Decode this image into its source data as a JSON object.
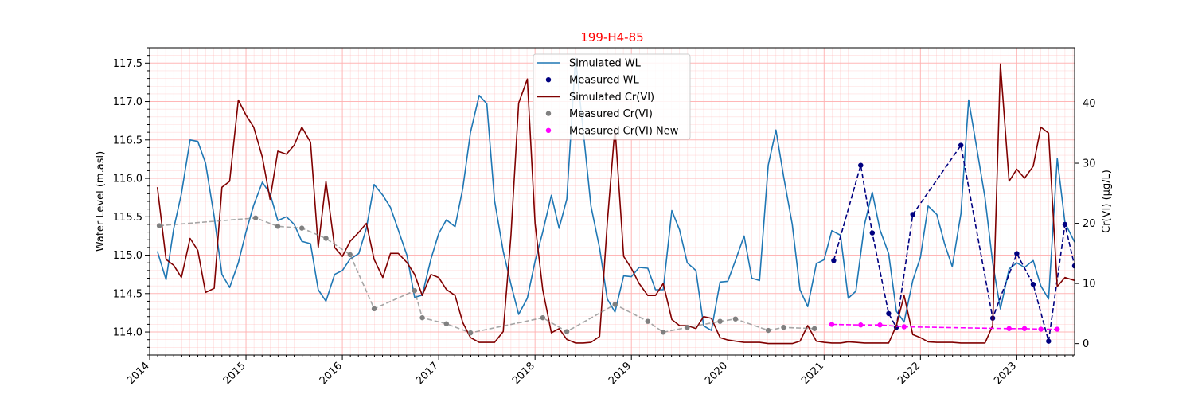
{
  "chart_data": {
    "type": "line",
    "title": "199-H4-85",
    "title_color": "#ff0000",
    "xlabel": "",
    "ylabel_left": "Water Level (m.asl)",
    "ylabel_right": "Cr(VI) (µg/L)",
    "xlim": [
      2014.0,
      2023.6
    ],
    "ylim_left": [
      113.7,
      117.7
    ],
    "ylim_right": [
      -1.9,
      49.2
    ],
    "x_ticks": [
      "2014",
      "2015",
      "2016",
      "2017",
      "2018",
      "2019",
      "2020",
      "2021",
      "2022",
      "2023"
    ],
    "y_ticks_left": [
      "114.0",
      "114.5",
      "115.0",
      "115.5",
      "116.0",
      "116.5",
      "117.0",
      "117.5"
    ],
    "y_ticks_right": [
      "0",
      "10",
      "20",
      "30",
      "40"
    ],
    "grid": true,
    "legend_location": "top-center",
    "legend": [
      "Simulated WL",
      "Measured WL",
      "Simulated Cr(VI)",
      "Measured Cr(VI)",
      "Measured Cr(VI) New"
    ],
    "colors": {
      "simulated_wl": "#1f77b4",
      "measured_wl": "#000080",
      "simulated_cr": "#800000",
      "measured_cr": "#808080",
      "measured_cr_new": "#ff00ff",
      "grid": "#ffb0b0"
    },
    "series": [
      {
        "name": "Simulated WL",
        "axis": "left",
        "style": "line",
        "x": [
          2014.08,
          2014.17,
          2014.25,
          2014.33,
          2014.42,
          2014.5,
          2014.58,
          2014.67,
          2014.75,
          2014.83,
          2014.92,
          2015.0,
          2015.08,
          2015.17,
          2015.25,
          2015.33,
          2015.42,
          2015.5,
          2015.58,
          2015.67,
          2015.75,
          2015.83,
          2015.92,
          2016.0,
          2016.08,
          2016.17,
          2016.25,
          2016.33,
          2016.42,
          2016.5,
          2016.58,
          2016.67,
          2016.75,
          2016.83,
          2016.92,
          2017.0,
          2017.08,
          2017.17,
          2017.25,
          2017.33,
          2017.42,
          2017.5,
          2017.58,
          2017.67,
          2017.75,
          2017.83,
          2017.92,
          2018.0,
          2018.08,
          2018.17,
          2018.25,
          2018.33,
          2018.42,
          2018.5,
          2018.58,
          2018.67,
          2018.75,
          2018.83,
          2018.92,
          2019.0,
          2019.08,
          2019.17,
          2019.25,
          2019.33,
          2019.42,
          2019.5,
          2019.58,
          2019.67,
          2019.75,
          2019.83,
          2019.92,
          2020.0,
          2020.08,
          2020.17,
          2020.25,
          2020.33,
          2020.42,
          2020.5,
          2020.58,
          2020.67,
          2020.75,
          2020.83,
          2020.92,
          2021.0,
          2021.08,
          2021.17,
          2021.25,
          2021.33,
          2021.42,
          2021.5,
          2021.58,
          2021.67,
          2021.75,
          2021.83,
          2021.92,
          2022.0,
          2022.08,
          2022.17,
          2022.25,
          2022.33,
          2022.42,
          2022.5,
          2022.58,
          2022.67,
          2022.75,
          2022.83,
          2022.92,
          2023.0,
          2023.08,
          2023.17,
          2023.25,
          2023.33,
          2023.42,
          2023.5,
          2023.6
        ],
        "values": [
          115.05,
          114.68,
          115.35,
          115.8,
          116.5,
          116.48,
          116.2,
          115.5,
          114.75,
          114.58,
          114.9,
          115.3,
          115.65,
          115.95,
          115.8,
          115.45,
          115.5,
          115.4,
          115.18,
          115.15,
          114.55,
          114.4,
          114.75,
          114.8,
          114.95,
          115.02,
          115.35,
          115.92,
          115.78,
          115.62,
          115.33,
          115.0,
          114.45,
          114.48,
          114.95,
          115.28,
          115.46,
          115.37,
          115.87,
          116.6,
          117.08,
          116.97,
          115.71,
          115.05,
          114.62,
          114.23,
          114.44,
          114.92,
          115.3,
          115.78,
          115.35,
          115.73,
          117.57,
          116.62,
          115.64,
          115.09,
          114.43,
          114.26,
          114.73,
          114.72,
          114.84,
          114.83,
          114.55,
          114.55,
          115.58,
          115.33,
          114.9,
          114.8,
          114.08,
          114.02,
          114.65,
          114.66,
          114.93,
          115.25,
          114.7,
          114.67,
          116.17,
          116.63,
          116.02,
          115.4,
          114.55,
          114.33,
          114.89,
          114.94,
          115.32,
          115.26,
          114.44,
          114.53,
          115.4,
          115.82,
          115.33,
          115.02,
          114.27,
          114.13,
          114.67,
          114.97,
          115.64,
          115.53,
          115.15,
          114.85,
          115.54,
          117.02,
          116.43,
          115.75,
          114.9,
          114.3,
          114.82,
          114.9,
          114.84,
          114.93,
          114.6,
          114.43,
          116.26,
          115.42,
          115.17
        ]
      },
      {
        "name": "Measured WL",
        "axis": "left",
        "style": "dashed-markers",
        "x": [
          2021.1,
          2021.38,
          2021.5,
          2021.67,
          2021.75,
          2021.92,
          2022.42,
          2022.75,
          2023.0,
          2023.17,
          2023.33,
          2023.5,
          2023.6
        ],
        "values": [
          114.93,
          116.17,
          115.29,
          114.24,
          114.06,
          115.53,
          116.43,
          114.18,
          115.02,
          114.62,
          113.88,
          115.4,
          114.86
        ]
      },
      {
        "name": "Simulated Cr(VI)",
        "axis": "right",
        "style": "line",
        "x": [
          2014.08,
          2014.17,
          2014.25,
          2014.33,
          2014.42,
          2014.5,
          2014.58,
          2014.67,
          2014.75,
          2014.83,
          2014.92,
          2015.0,
          2015.08,
          2015.17,
          2015.25,
          2015.33,
          2015.42,
          2015.5,
          2015.58,
          2015.67,
          2015.75,
          2015.83,
          2015.92,
          2016.0,
          2016.08,
          2016.17,
          2016.25,
          2016.33,
          2016.42,
          2016.5,
          2016.58,
          2016.67,
          2016.75,
          2016.83,
          2016.92,
          2017.0,
          2017.08,
          2017.17,
          2017.25,
          2017.33,
          2017.42,
          2017.5,
          2017.58,
          2017.67,
          2017.75,
          2017.83,
          2017.92,
          2018.0,
          2018.08,
          2018.17,
          2018.25,
          2018.33,
          2018.42,
          2018.5,
          2018.58,
          2018.67,
          2018.75,
          2018.83,
          2018.92,
          2019.0,
          2019.08,
          2019.17,
          2019.25,
          2019.33,
          2019.42,
          2019.5,
          2019.58,
          2019.67,
          2019.75,
          2019.83,
          2019.92,
          2020.0,
          2020.08,
          2020.17,
          2020.25,
          2020.33,
          2020.42,
          2020.5,
          2020.58,
          2020.67,
          2020.75,
          2020.83,
          2020.92,
          2021.0,
          2021.08,
          2021.17,
          2021.25,
          2021.33,
          2021.42,
          2021.5,
          2021.58,
          2021.67,
          2021.75,
          2021.83,
          2021.92,
          2022.0,
          2022.08,
          2022.17,
          2022.25,
          2022.33,
          2022.42,
          2022.5,
          2022.58,
          2022.67,
          2022.75,
          2022.83,
          2022.92,
          2023.0,
          2023.08,
          2023.17,
          2023.25,
          2023.33,
          2023.42,
          2023.5,
          2023.6
        ],
        "values": [
          26,
          14,
          13,
          11,
          17.5,
          15.5,
          8.5,
          9.2,
          26,
          27,
          40.5,
          38,
          36,
          31,
          24,
          32,
          31.5,
          33,
          36,
          33.5,
          16,
          27,
          16,
          14.5,
          17,
          18.5,
          20,
          14,
          11,
          15,
          15,
          13.5,
          11.5,
          8,
          11.5,
          11,
          9,
          8,
          3.5,
          1,
          0.2,
          0.2,
          0.2,
          2,
          18,
          40,
          44,
          20,
          9,
          1.8,
          2.5,
          0.7,
          0.1,
          0.1,
          0.2,
          1.2,
          20,
          36,
          14.5,
          12.5,
          10,
          8,
          8,
          10,
          4,
          3,
          3,
          2.5,
          4.5,
          4.2,
          1,
          0.6,
          0.4,
          0.2,
          0.2,
          0.2,
          0,
          0,
          0,
          0,
          0.4,
          3,
          0.4,
          0.2,
          0.1,
          0.1,
          0.3,
          0.2,
          0.1,
          0.1,
          0.1,
          0.1,
          3,
          8,
          1.5,
          1,
          0.3,
          0.2,
          0.2,
          0.2,
          0.1,
          0.1,
          0.1,
          0.1,
          3,
          46.5,
          27,
          29,
          27.5,
          29.5,
          36,
          35,
          9.5,
          11,
          10.5
        ]
      },
      {
        "name": "Measured Cr(VI)",
        "axis": "right",
        "style": "dashed-markers",
        "x": [
          2014.1,
          2015.1,
          2015.33,
          2015.58,
          2015.83,
          2016.08,
          2016.33,
          2016.75,
          2016.83,
          2017.08,
          2017.33,
          2018.08,
          2018.33,
          2018.83,
          2019.17,
          2019.33,
          2019.58,
          2019.92,
          2020.08,
          2020.42,
          2020.58,
          2020.9
        ],
        "values": [
          19.6,
          20.9,
          19.5,
          19.2,
          17.5,
          14.8,
          5.8,
          8.8,
          4.3,
          3.3,
          1.8,
          4.3,
          2.0,
          6.5,
          3.7,
          1.9,
          2.7,
          3.7,
          4.1,
          2.2,
          2.7,
          2.5
        ]
      },
      {
        "name": "Measured Cr(VI) New",
        "axis": "right",
        "style": "dashed-markers",
        "x": [
          2021.08,
          2021.38,
          2021.58,
          2021.83,
          2022.92,
          2023.08,
          2023.25,
          2023.42
        ],
        "values": [
          3.2,
          3.1,
          3.1,
          2.8,
          2.5,
          2.5,
          2.4,
          2.4
        ]
      }
    ]
  }
}
